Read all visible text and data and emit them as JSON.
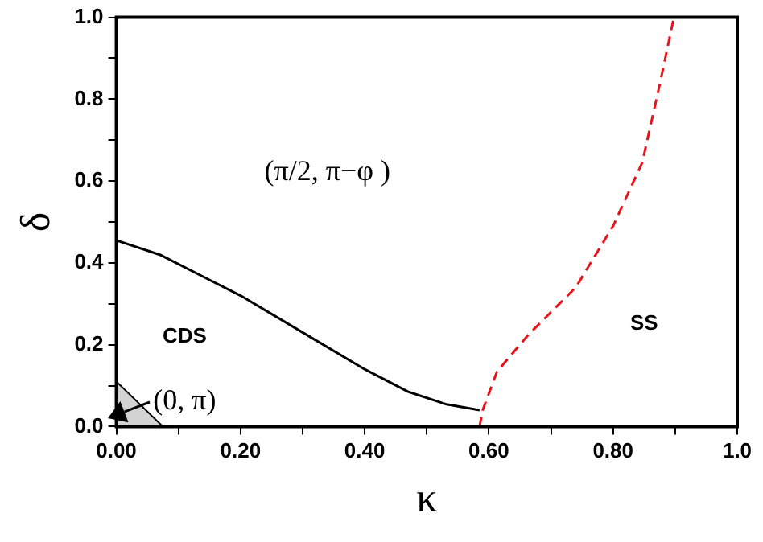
{
  "chart_data": {
    "type": "line",
    "xlabel": "κ",
    "ylabel": "δ",
    "xlim": [
      0,
      1
    ],
    "ylim": [
      0,
      1
    ],
    "xticks": [
      {
        "value": 0,
        "label": "0.00"
      },
      {
        "value": 0.1,
        "label": null
      },
      {
        "value": 0.2,
        "label": "0.20"
      },
      {
        "value": 0.3,
        "label": null
      },
      {
        "value": 0.4,
        "label": "0.40"
      },
      {
        "value": 0.5,
        "label": null
      },
      {
        "value": 0.6,
        "label": "0.60"
      },
      {
        "value": 0.7,
        "label": null
      },
      {
        "value": 0.8,
        "label": "0.80"
      },
      {
        "value": 0.9,
        "label": null
      },
      {
        "value": 1,
        "label": "1.0"
      }
    ],
    "yticks": [
      {
        "value": 0,
        "label": "0.0"
      },
      {
        "value": 0.1,
        "label": null
      },
      {
        "value": 0.2,
        "label": "0.2"
      },
      {
        "value": 0.3,
        "label": null
      },
      {
        "value": 0.4,
        "label": "0.4"
      },
      {
        "value": 0.5,
        "label": null
      },
      {
        "value": 0.6,
        "label": "0.6"
      },
      {
        "value": 0.7,
        "label": null
      },
      {
        "value": 0.8,
        "label": "0.8"
      },
      {
        "value": 0.9,
        "label": null
      },
      {
        "value": 1,
        "label": "1.0"
      }
    ],
    "grid": false,
    "legend": false,
    "marker": "none",
    "series": [
      {
        "type": "area",
        "color": "#d3d3d3",
        "x": [
          0,
          0.075
        ],
        "values": [
          0.11,
          0
        ]
      },
      {
        "type": "line",
        "color": "#000000",
        "x": [
          0,
          0.07,
          0.2,
          0.3,
          0.4,
          0.47,
          0.53,
          0.585
        ],
        "values": [
          0.455,
          0.42,
          0.32,
          0.23,
          0.14,
          0.085,
          0.055,
          0.04
        ]
      },
      {
        "type": "line",
        "color": "#e8141c",
        "line_style": "dashed",
        "x": [
          0.585,
          0.59,
          0.613,
          0.664,
          0.74,
          0.8,
          0.847,
          0.875,
          0.898
        ],
        "values": [
          0,
          0.04,
          0.134,
          0.225,
          0.34,
          0.49,
          0.645,
          0.835,
          1
        ]
      }
    ],
    "annotations": [
      "(π/2, π−φ )",
      "(0, π)",
      "CDS",
      "SS"
    ]
  }
}
